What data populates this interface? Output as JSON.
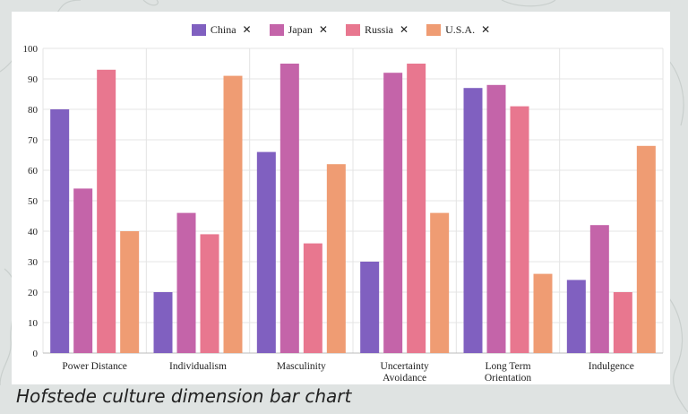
{
  "caption": "Hofstede culture dimension bar chart",
  "legend": [
    {
      "name": "China",
      "color": "#8060c0",
      "close": "✕"
    },
    {
      "name": "Japan",
      "color": "#c464a9",
      "close": "✕"
    },
    {
      "name": "Russia",
      "color": "#e8778f",
      "close": "✕"
    },
    {
      "name": "U.S.A.",
      "color": "#ef9c73",
      "close": "✕"
    }
  ],
  "chart_data": {
    "type": "bar",
    "categories": [
      "Power Distance",
      "Individualism",
      "Masculinity",
      [
        "Uncertainty",
        "Avoidance"
      ],
      [
        "Long Term",
        "Orientation"
      ],
      "Indulgence"
    ],
    "series": [
      {
        "name": "China",
        "color": "#8060c0",
        "values": [
          80,
          20,
          66,
          30,
          87,
          24
        ]
      },
      {
        "name": "Japan",
        "color": "#c464a9",
        "values": [
          54,
          46,
          95,
          92,
          88,
          42
        ]
      },
      {
        "name": "Russia",
        "color": "#e8778f",
        "values": [
          93,
          39,
          36,
          95,
          81,
          20
        ]
      },
      {
        "name": "U.S.A.",
        "color": "#ef9c73",
        "values": [
          40,
          91,
          62,
          46,
          26,
          68
        ]
      }
    ],
    "yticks": [
      0,
      10,
      20,
      30,
      40,
      50,
      60,
      70,
      80,
      90,
      100
    ],
    "ylim": [
      0,
      100
    ],
    "grid": true,
    "legend_position": "top"
  }
}
